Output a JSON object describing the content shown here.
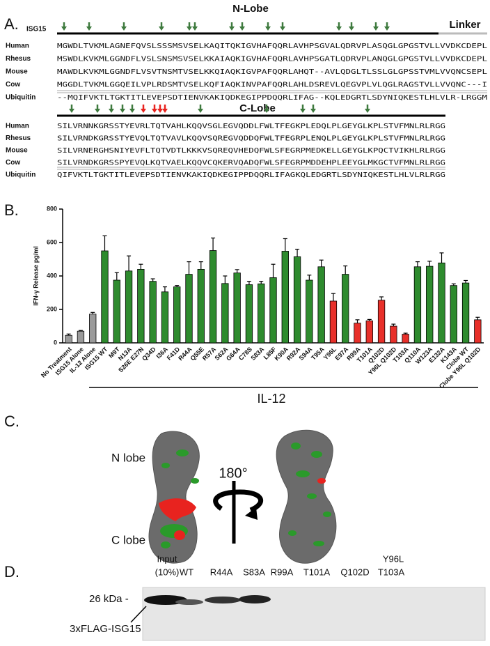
{
  "panel_a": {
    "label": "A.",
    "protein": "ISG15",
    "n_lobe": "N-Lobe",
    "linker": "Linker",
    "c_lobe": "C-Lobe",
    "n_rows": [
      {
        "species": "Human",
        "sequence": "MGWDLTVKMLAGNEFQVSLSSSMSVSELKAQITQKIGVHAFQQRLAVHPSGVALQDRVPLASQGLGPGSTVLLVVDKCDEPL"
      },
      {
        "species": "Rhesus",
        "sequence": "MSWDLKVKMLGGNDFLVSLSNSMSVSELKKAIAQKIGVHAFQQRLAVHPSGATLQDRVPLANQGLGPGSTVLLVVDKCDEPL"
      },
      {
        "species": "Mouse",
        "sequence": "MAWDLKVKMLGGNDFLVSVTNSMTVSELKKQIAQKIGVPAFQQRLAHQT--AVLQDGLTLSSLGLGPSSTVMLVVQNCSEPL"
      },
      {
        "species": "Cow",
        "sequence": "MGGDLTVKMLGGQEILVPLRDSMTVSELKQFIAQKINVPAFQQRLAHLDSREVLQEGVPLVLQGLRAGSTVLLVVQNC---I"
      },
      {
        "species": "Ubiquitin",
        "sequence": "--MQIFVKTLTGKTITLEVEPSDTIENVKAKIQDKEGIPPDQQRLIFAG--KQLEDGRTLSDYNIQKESTLHLVLR-LRGGM"
      }
    ],
    "c_rows": [
      {
        "species": "Human",
        "sequence": "SILVRNNKGRSSTYEVRLTQTVAHLKQQVSGLEGVQDDLFWLTFEGKPLEDQLPLGEYGLKPLSTVFMNLRLRGG"
      },
      {
        "species": "Rhesus",
        "sequence": "SILVRNDKGRSSTYEVQLTQTVAVLKQQVSQREGVQDDQFWLTFEGRPLENQLPLGEYGLKPLSTVFMNLRLRGG"
      },
      {
        "species": "Mouse",
        "sequence": "SILVRNERGHSNIYEVFLTQTVDTLKKKVSQREQVHEDQFWLSFEGRPMEDKELLGEYGLKPQCTVIKHLRLRGG"
      },
      {
        "species": "Cow",
        "sequence": "SILVRNDKGRSSPYEVQLKQTVAELKQQVCQKERVQADQFWLSFEGRPMDDEHPLEEYGLMKGCTVFMNLRLRGG"
      },
      {
        "species": "Ubiquitin",
        "sequence": "QIFVKTLTGKTITLEVEPSDTIENVKAKIQDKEGIPPDQQRLIFAGKQLEDGRTLSDYNIQKESTLHLVLRLRGG"
      }
    ]
  },
  "panel_b_label": "B.",
  "chart_data": {
    "type": "bar",
    "ylabel": "IFN-γ Release pg/ml",
    "group_label": "IL-12",
    "categories": [
      "No Treatment",
      "ISG15 Alone",
      "IL-12 Alone",
      "ISG15 WT",
      "M9T",
      "N13A",
      "S26E E27N",
      "Q34D",
      "I36A",
      "F41D",
      "R44A",
      "Q55E",
      "R57A",
      "S62A",
      "G64A",
      "C78S",
      "S83A",
      "L85F",
      "K90A",
      "R92A",
      "S94A",
      "T95A",
      "Y96L",
      "E97A",
      "R99A",
      "T101A",
      "Q102D",
      "Y96L Q102D",
      "T103A",
      "Q110A",
      "W123A",
      "E132A",
      "K143A",
      "Clobe WT",
      "Clobe Y96L Q102D"
    ],
    "values": [
      45,
      70,
      172,
      550,
      375,
      430,
      440,
      368,
      305,
      335,
      410,
      440,
      552,
      355,
      418,
      348,
      353,
      390,
      548,
      515,
      375,
      455,
      250,
      410,
      118,
      132,
      255,
      100,
      52,
      455,
      458,
      478,
      343,
      358,
      138
    ],
    "errors": [
      8,
      4,
      10,
      90,
      45,
      90,
      30,
      15,
      30,
      8,
      75,
      45,
      75,
      45,
      20,
      20,
      15,
      80,
      75,
      45,
      30,
      40,
      45,
      50,
      20,
      8,
      20,
      12,
      6,
      30,
      30,
      60,
      10,
      15,
      15
    ],
    "colors": [
      "#9a9a9a",
      "#9a9a9a",
      "#9a9a9a",
      "#2e8b2e",
      "#2e8b2e",
      "#2e8b2e",
      "#2e8b2e",
      "#2e8b2e",
      "#2e8b2e",
      "#2e8b2e",
      "#2e8b2e",
      "#2e8b2e",
      "#2e8b2e",
      "#2e8b2e",
      "#2e8b2e",
      "#2e8b2e",
      "#2e8b2e",
      "#2e8b2e",
      "#2e8b2e",
      "#2e8b2e",
      "#2e8b2e",
      "#2e8b2e",
      "#e8302a",
      "#2e8b2e",
      "#e8302a",
      "#e8302a",
      "#e8302a",
      "#e8302a",
      "#e8302a",
      "#2e8b2e",
      "#2e8b2e",
      "#2e8b2e",
      "#2e8b2e",
      "#2e8b2e",
      "#e8302a"
    ],
    "ylim": [
      0,
      800
    ],
    "yticks": [
      0,
      200,
      400,
      600,
      800
    ]
  },
  "panel_c": {
    "label": "C.",
    "n_lobe": "N lobe",
    "c_lobe": "C lobe",
    "rotation": "180°"
  },
  "panel_d": {
    "label": "D.",
    "lanes": [
      [
        "Input",
        "(10%)"
      ],
      [
        "WT"
      ],
      [
        "R44A"
      ],
      [
        "S83A"
      ],
      [
        "R99A"
      ],
      [
        "T101A"
      ],
      [
        "Y96L",
        "Q102D"
      ],
      [
        "T103A"
      ]
    ],
    "marker": "26 kDa -",
    "protein": "3xFLAG-ISG15"
  }
}
